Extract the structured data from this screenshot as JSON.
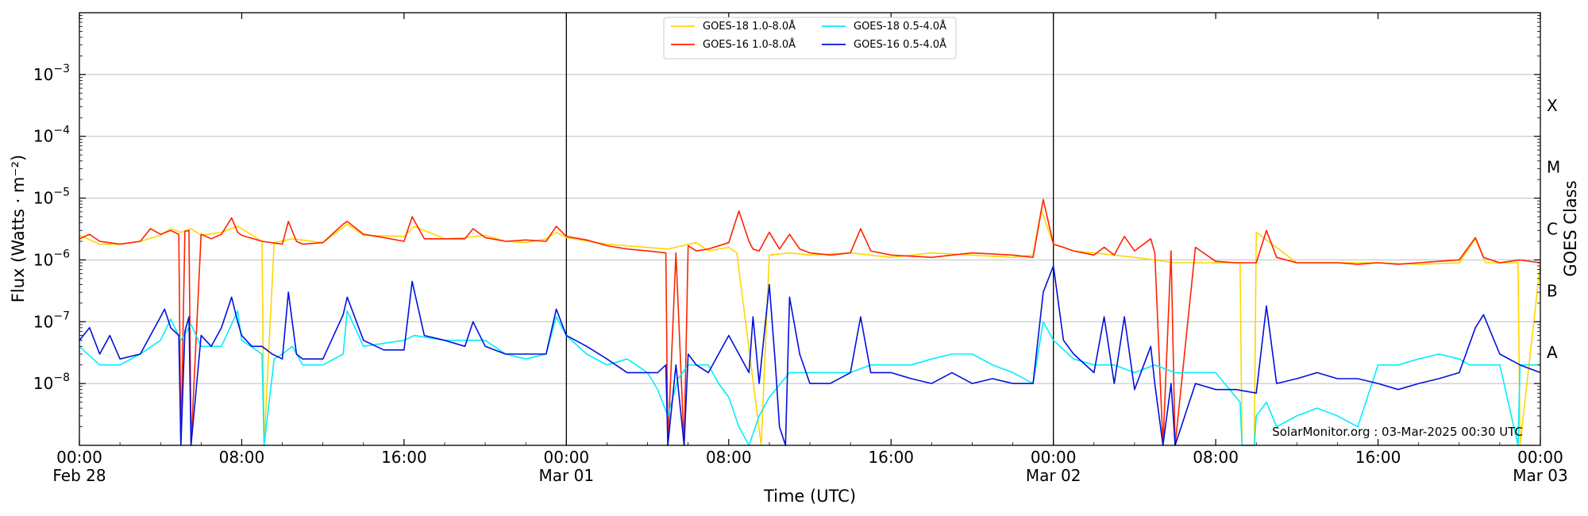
{
  "chart_data": {
    "type": "line",
    "ylabel": "Flux (Watts · m⁻²)",
    "xlabel": "Time (UTC)",
    "right_label": "GOES Class",
    "credit": "SolarMonitor.org : 03-Mar-2025 00:30 UTC",
    "y_scale": "log",
    "ylim": [
      1e-09,
      0.01
    ],
    "xlim_hours": [
      0,
      72
    ],
    "grid": true,
    "legend_position": "top-center",
    "y_ticks": [
      {
        "value": 1e-08,
        "base": "10",
        "exp": "−8"
      },
      {
        "value": 1e-07,
        "base": "10",
        "exp": "−7"
      },
      {
        "value": 1e-06,
        "base": "10",
        "exp": "−6"
      },
      {
        "value": 1e-05,
        "base": "10",
        "exp": "−5"
      },
      {
        "value": 0.0001,
        "base": "10",
        "exp": "−4"
      },
      {
        "value": 0.001,
        "base": "10",
        "exp": "−3"
      }
    ],
    "x_ticks": [
      {
        "hour": 0,
        "time": "00:00",
        "date": "Feb 28"
      },
      {
        "hour": 8,
        "time": "08:00",
        "date": ""
      },
      {
        "hour": 16,
        "time": "16:00",
        "date": ""
      },
      {
        "hour": 24,
        "time": "00:00",
        "date": "Mar 01"
      },
      {
        "hour": 32,
        "time": "08:00",
        "date": ""
      },
      {
        "hour": 40,
        "time": "16:00",
        "date": ""
      },
      {
        "hour": 48,
        "time": "00:00",
        "date": "Mar 02"
      },
      {
        "hour": 56,
        "time": "08:00",
        "date": ""
      },
      {
        "hour": 64,
        "time": "16:00",
        "date": ""
      },
      {
        "hour": 72,
        "time": "00:00",
        "date": "Mar 03"
      }
    ],
    "day_boundaries_hours": [
      24,
      48
    ],
    "goes_classes": [
      {
        "label": "A",
        "min": 1e-08
      },
      {
        "label": "B",
        "min": 1e-07
      },
      {
        "label": "C",
        "min": 1e-06
      },
      {
        "label": "M",
        "min": 1e-05
      },
      {
        "label": "X",
        "min": 0.0001
      }
    ],
    "series": [
      {
        "name": "GOES-18 1.0-8.0Å",
        "color": "#ffd700",
        "x": [
          0,
          1,
          2,
          3,
          4,
          4.5,
          5,
          5.5,
          6,
          7,
          7.8,
          9,
          9.1,
          9.6,
          10.5,
          12,
          13.2,
          14,
          16,
          16.5,
          18,
          19,
          20,
          21,
          22,
          23,
          23.5,
          24,
          26,
          29,
          30.4,
          31,
          32,
          32.4,
          33.6,
          34,
          35,
          36,
          38,
          40,
          42,
          44,
          46,
          47,
          47.4,
          48,
          49,
          50,
          52,
          54,
          57.2,
          57.3,
          57.9,
          58,
          60,
          62,
          64,
          66,
          68,
          68.8,
          69.3,
          70,
          70.9,
          71,
          72
        ],
        "values": [
          2.5e-06,
          1.8e-06,
          1.8e-06,
          2e-06,
          2.5e-06,
          3.2e-06,
          2.8e-06,
          3.2e-06,
          2.5e-06,
          2.8e-06,
          3.5e-06,
          2e-06,
          1e-09,
          1.9e-06,
          2.2e-06,
          1.9e-06,
          3.8e-06,
          2.5e-06,
          2.4e-06,
          3.5e-06,
          2.2e-06,
          2.3e-06,
          2.5e-06,
          2e-06,
          1.9e-06,
          2.2e-06,
          2.8e-06,
          2.3e-06,
          1.8e-06,
          1.5e-06,
          1.9e-06,
          1.4e-06,
          1.6e-06,
          1.3e-06,
          1e-09,
          1.2e-06,
          1.3e-06,
          1.2e-06,
          1.3e-06,
          1.1e-06,
          1.3e-06,
          1.2e-06,
          1.1e-06,
          1.2e-06,
          6.5e-06,
          1.8e-06,
          1.4e-06,
          1.3e-06,
          1.1e-06,
          9e-07,
          9e-07,
          1e-09,
          1e-09,
          2.8e-06,
          9e-07,
          9e-07,
          9e-07,
          8.5e-07,
          9e-07,
          2.2e-06,
          9e-07,
          9e-07,
          9e-07,
          1e-09,
          9e-07
        ]
      },
      {
        "name": "GOES-16 1.0-8.0Å",
        "color": "#ff2200",
        "x": [
          0,
          0.5,
          1,
          2,
          3,
          3.5,
          4,
          4.5,
          4.9,
          5,
          5.2,
          5.4,
          5.5,
          6,
          6.5,
          7,
          7.5,
          7.8,
          8,
          9,
          10,
          10.3,
          10.7,
          11,
          12,
          13,
          13.2,
          14,
          15,
          16,
          16.4,
          17,
          18,
          19,
          19.4,
          20,
          21,
          22,
          23,
          23.5,
          24,
          25,
          26,
          27,
          28,
          28.9,
          29,
          29.4,
          29.8,
          30,
          30.4,
          31,
          32,
          32.5,
          33,
          33.2,
          33.5,
          34,
          34.5,
          35,
          35.5,
          36,
          37,
          38,
          38.5,
          39,
          40,
          42,
          44,
          46,
          47,
          47.5,
          48,
          48.5,
          49,
          50,
          50.5,
          51,
          51.5,
          52,
          52.8,
          53,
          53.4,
          53.8,
          54,
          55,
          56,
          57,
          58,
          58.5,
          59,
          60,
          61,
          62,
          63,
          64,
          65,
          66,
          67,
          68,
          68.8,
          69.2,
          70,
          71,
          72
        ],
        "values": [
          2.2e-06,
          2.6e-06,
          2e-06,
          1.8e-06,
          2e-06,
          3.2e-06,
          2.6e-06,
          3e-06,
          2.6e-06,
          1e-09,
          2.9e-06,
          3e-06,
          1e-09,
          2.6e-06,
          2.2e-06,
          2.6e-06,
          4.8e-06,
          2.8e-06,
          2.5e-06,
          2e-06,
          1.8e-06,
          4.2e-06,
          2e-06,
          1.8e-06,
          1.9e-06,
          3.8e-06,
          4.2e-06,
          2.6e-06,
          2.3e-06,
          2e-06,
          5e-06,
          2.2e-06,
          2.2e-06,
          2.2e-06,
          3.2e-06,
          2.3e-06,
          2e-06,
          2.1e-06,
          2e-06,
          3.5e-06,
          2.4e-06,
          2.1e-06,
          1.7e-06,
          1.5e-06,
          1.4e-06,
          1.3e-06,
          1e-09,
          1.3e-06,
          1e-09,
          1.7e-06,
          1.4e-06,
          1.5e-06,
          1.9e-06,
          6.2e-06,
          2e-06,
          1.5e-06,
          1.4e-06,
          2.8e-06,
          1.5e-06,
          2.6e-06,
          1.5e-06,
          1.3e-06,
          1.2e-06,
          1.3e-06,
          3.2e-06,
          1.4e-06,
          1.2e-06,
          1.1e-06,
          1.3e-06,
          1.2e-06,
          1.1e-06,
          9.5e-06,
          1.8e-06,
          1.6e-06,
          1.4e-06,
          1.2e-06,
          1.6e-06,
          1.2e-06,
          2.4e-06,
          1.4e-06,
          2.2e-06,
          1.3e-06,
          1e-09,
          1.4e-06,
          1e-09,
          1.6e-06,
          9.5e-07,
          9e-07,
          9e-07,
          3e-06,
          1.1e-06,
          9e-07,
          9e-07,
          9e-07,
          8.5e-07,
          9e-07,
          8.5e-07,
          9e-07,
          9.5e-07,
          1e-06,
          2.3e-06,
          1.1e-06,
          9e-07,
          1e-06,
          9e-07
        ]
      },
      {
        "name": "GOES-18 0.5-4.0Å",
        "color": "#00eeff",
        "x": [
          0,
          1,
          2,
          3,
          4,
          4.5,
          5,
          5.5,
          6,
          7,
          7.8,
          8,
          9,
          9.1,
          9.6,
          10,
          10.5,
          11,
          12,
          13,
          13.2,
          14,
          16,
          16.5,
          18,
          19,
          20,
          21,
          22,
          23,
          23.5,
          24,
          25,
          26,
          27,
          28,
          28.5,
          29,
          29.5,
          30,
          31,
          31.5,
          32,
          32.5,
          33,
          33.5,
          34,
          35,
          36,
          37,
          38,
          39,
          40,
          41,
          42,
          43,
          44,
          45,
          46,
          47,
          47.5,
          48,
          49,
          50,
          51,
          52,
          53,
          54,
          55,
          56,
          57.2,
          57.3,
          57.9,
          58,
          58.5,
          59,
          60,
          61,
          62,
          63,
          64,
          65,
          66,
          67,
          68,
          68.5,
          69,
          70,
          70.9,
          71,
          72
        ],
        "values": [
          4e-08,
          2e-08,
          2e-08,
          3e-08,
          5e-08,
          1.1e-07,
          5e-08,
          9e-08,
          4e-08,
          4e-08,
          1.5e-07,
          5e-08,
          3e-08,
          1e-09,
          2.5e-08,
          3e-08,
          4e-08,
          2e-08,
          2e-08,
          3e-08,
          1.5e-07,
          4e-08,
          5e-08,
          6e-08,
          5e-08,
          5e-08,
          5e-08,
          3e-08,
          2.5e-08,
          3e-08,
          1.2e-07,
          6e-08,
          3e-08,
          2e-08,
          2.5e-08,
          1.5e-08,
          8e-09,
          3e-09,
          1.2e-08,
          2e-08,
          2e-08,
          1e-08,
          6e-09,
          2e-09,
          1e-09,
          3e-09,
          6e-09,
          1.5e-08,
          1.5e-08,
          1.5e-08,
          1.5e-08,
          2e-08,
          2e-08,
          2e-08,
          2.5e-08,
          3e-08,
          3e-08,
          2e-08,
          1.5e-08,
          1e-08,
          1e-07,
          5e-08,
          2.5e-08,
          2e-08,
          2e-08,
          1.5e-08,
          2e-08,
          1.5e-08,
          1.5e-08,
          1.5e-08,
          5e-09,
          1e-09,
          1e-09,
          3e-09,
          5e-09,
          2e-09,
          3e-09,
          4e-09,
          3e-09,
          2e-09,
          2e-08,
          2e-08,
          2.5e-08,
          3e-08,
          2.5e-08,
          2e-08,
          2e-08,
          2e-08,
          1e-09,
          2e-08,
          2e-08
        ]
      },
      {
        "name": "GOES-16 0.5-4.0Å",
        "color": "#0011dd",
        "x": [
          0,
          0.5,
          1,
          1.5,
          2,
          3,
          3.5,
          4,
          4.2,
          4.5,
          4.9,
          5,
          5.2,
          5.4,
          5.5,
          6,
          6.5,
          7,
          7.5,
          7.8,
          8,
          8.5,
          9,
          9.5,
          10,
          10.3,
          10.7,
          11,
          12,
          13,
          13.2,
          14,
          15,
          16,
          16.4,
          17,
          18,
          19,
          19.4,
          20,
          21,
          22,
          23,
          23.5,
          24,
          25,
          26,
          27,
          28,
          28.5,
          28.9,
          29,
          29.4,
          29.8,
          30,
          30.4,
          31,
          32,
          32.5,
          33,
          33.2,
          33.5,
          34,
          34.3,
          34.5,
          34.8,
          35,
          35.5,
          36,
          37,
          38,
          38.5,
          39,
          40,
          41,
          42,
          43,
          44,
          45,
          46,
          47,
          47.5,
          48,
          48.5,
          49,
          50,
          50.5,
          51,
          51.5,
          52,
          52.8,
          53,
          53.4,
          53.8,
          54,
          55,
          56,
          57,
          58,
          58.5,
          59,
          60,
          61,
          62,
          63,
          64,
          65,
          66,
          67,
          68,
          68.8,
          69.2,
          70,
          71,
          72
        ],
        "values": [
          5e-08,
          8e-08,
          3e-08,
          6e-08,
          2.5e-08,
          3e-08,
          6e-08,
          1.2e-07,
          1.6e-07,
          8e-08,
          6e-08,
          1e-09,
          7e-08,
          1.2e-07,
          1e-09,
          6e-08,
          4e-08,
          8e-08,
          2.5e-07,
          1e-07,
          6e-08,
          4e-08,
          4e-08,
          3e-08,
          2.5e-08,
          3e-07,
          3e-08,
          2.5e-08,
          2.5e-08,
          1.3e-07,
          2.5e-07,
          5e-08,
          3.5e-08,
          3.5e-08,
          4.5e-07,
          6e-08,
          5e-08,
          4e-08,
          1e-07,
          4e-08,
          3e-08,
          3e-08,
          3e-08,
          1.6e-07,
          6e-08,
          4e-08,
          2.5e-08,
          1.5e-08,
          1.5e-08,
          1.5e-08,
          2e-08,
          1e-09,
          2e-08,
          1e-09,
          3e-08,
          2e-08,
          1.5e-08,
          6e-08,
          3e-08,
          1.5e-08,
          1.2e-07,
          1e-08,
          4e-07,
          2e-08,
          2e-09,
          1e-09,
          2.5e-07,
          3e-08,
          1e-08,
          1e-08,
          1.5e-08,
          1.2e-07,
          1.5e-08,
          1.5e-08,
          1.2e-08,
          1e-08,
          1.5e-08,
          1e-08,
          1.2e-08,
          1e-08,
          1e-08,
          3e-07,
          8e-07,
          5e-08,
          3e-08,
          1.5e-08,
          1.2e-07,
          1e-08,
          1.2e-07,
          8e-09,
          4e-08,
          1e-08,
          1e-09,
          1e-08,
          1e-09,
          1e-08,
          8e-09,
          8e-09,
          7e-09,
          1.8e-07,
          1e-08,
          1.2e-08,
          1.5e-08,
          1.2e-08,
          1.2e-08,
          1e-08,
          8e-09,
          1e-08,
          1.2e-08,
          1.5e-08,
          8e-08,
          1.3e-07,
          3e-08,
          2e-08,
          1.5e-08
        ]
      }
    ]
  }
}
